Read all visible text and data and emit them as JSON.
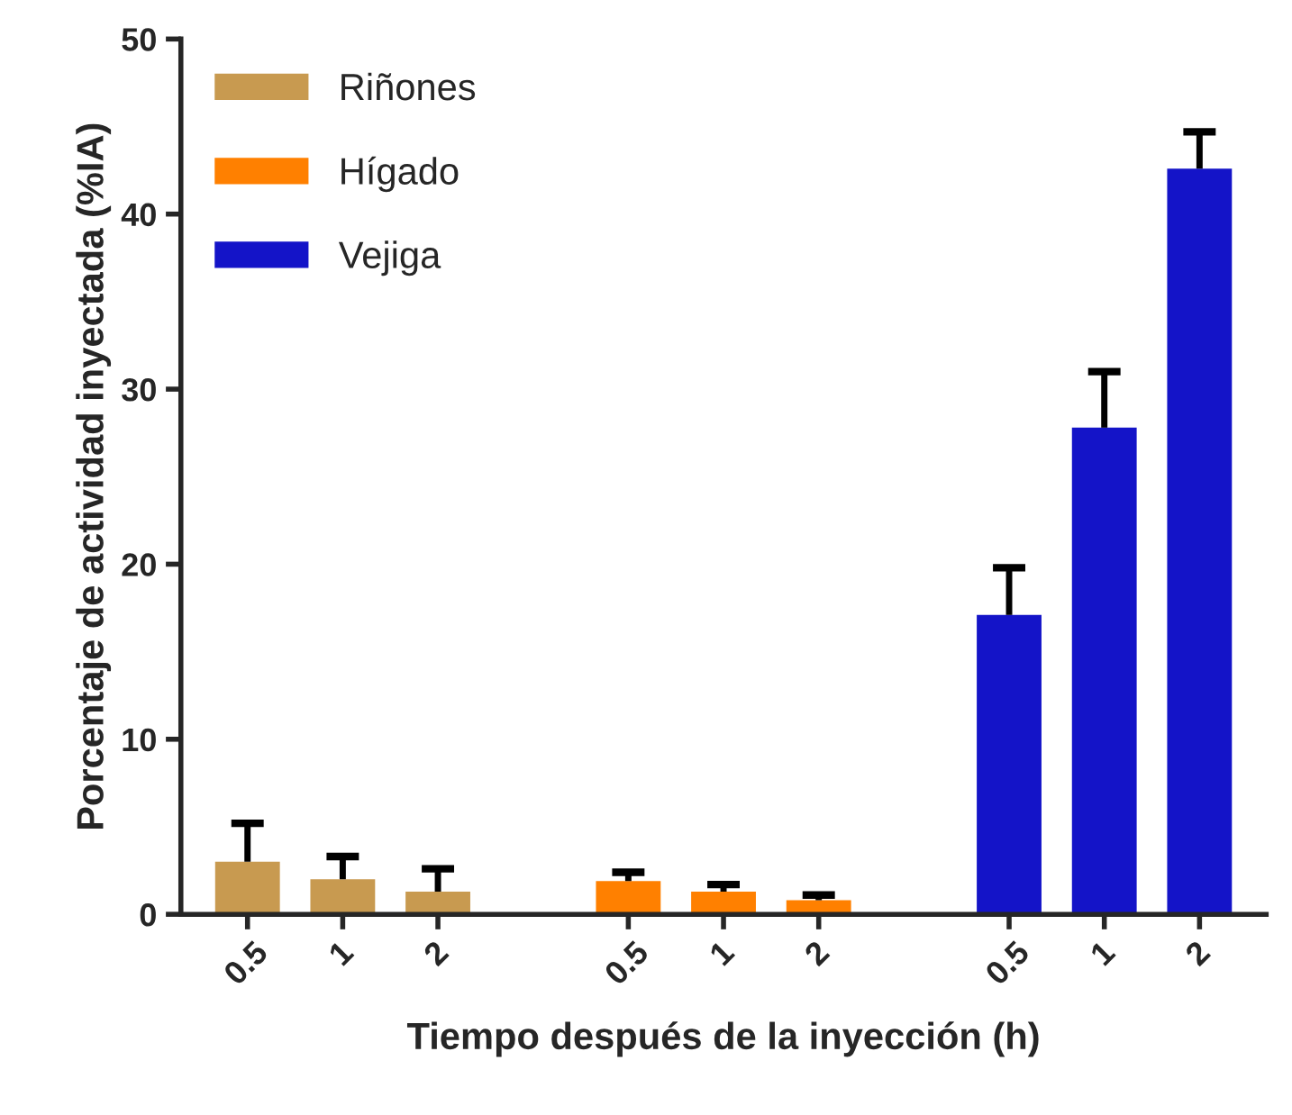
{
  "chart_data": {
    "type": "bar",
    "xlabel": "Tiempo después de la inyección (h)",
    "ylabel": "Porcentaje de actividad inyectada (%IA)",
    "categories": [
      "0.5",
      "1",
      "2",
      null,
      "0.5",
      "1",
      "2",
      null,
      "0.5",
      "1",
      "2"
    ],
    "series": [
      {
        "name": "Riñones",
        "color": "#c89a50",
        "values": [
          3.0,
          2.0,
          1.3,
          null,
          null,
          null,
          null,
          null,
          null,
          null,
          null
        ],
        "errors": [
          [
            3.0,
            5.2
          ],
          [
            2.0,
            3.3
          ],
          [
            1.3,
            2.6
          ],
          null,
          null,
          null,
          null,
          null,
          null,
          null,
          null
        ]
      },
      {
        "name": "Hígado",
        "color": "#ff8000",
        "values": [
          null,
          null,
          null,
          null,
          1.9,
          1.3,
          0.8,
          null,
          null,
          null,
          null
        ],
        "errors": [
          null,
          null,
          null,
          null,
          [
            1.9,
            2.4
          ],
          [
            1.3,
            1.7
          ],
          [
            0.8,
            1.1
          ],
          null,
          null,
          null,
          null
        ]
      },
      {
        "name": "Vejiga",
        "color": "#1414c8",
        "values": [
          null,
          null,
          null,
          null,
          null,
          null,
          null,
          null,
          17.1,
          27.8,
          42.6
        ],
        "errors": [
          null,
          null,
          null,
          null,
          null,
          null,
          null,
          null,
          [
            17.1,
            19.8
          ],
          [
            27.8,
            31.0
          ],
          [
            42.6,
            44.7
          ]
        ]
      }
    ],
    "ylim": [
      0,
      50
    ],
    "yticks": [
      0,
      10,
      20,
      30,
      40,
      50
    ],
    "legend": "top left",
    "grid": false
  }
}
